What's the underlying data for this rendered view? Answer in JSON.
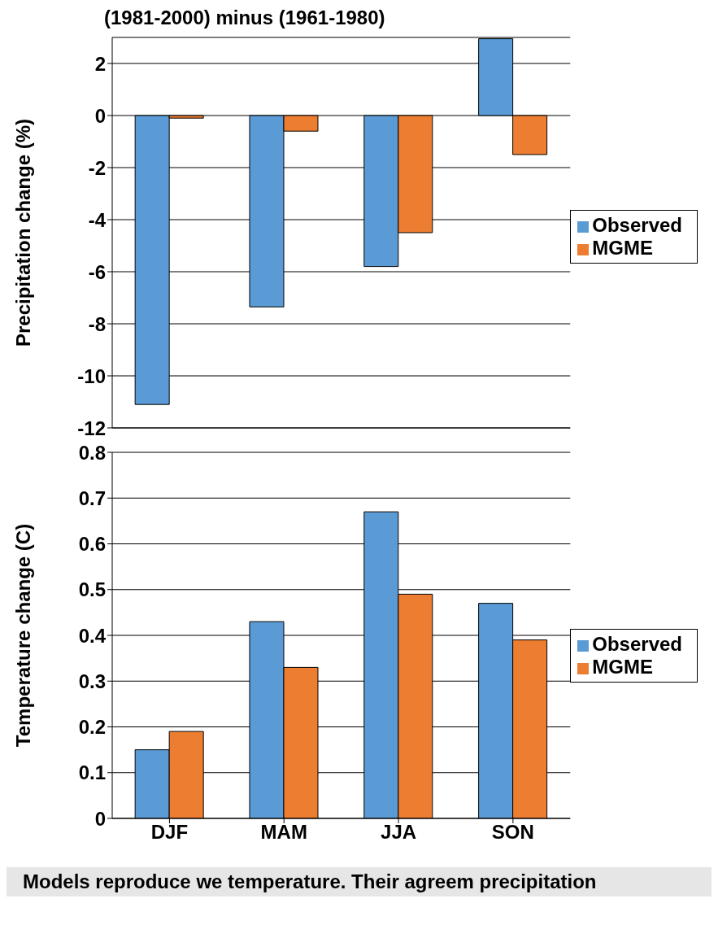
{
  "chart_data": [
    {
      "type": "bar",
      "title": "(1981-2000) minus (1961-1980)",
      "ylabel": "Precipitation change (%)",
      "categories": [
        null,
        null,
        null,
        null
      ],
      "series": [
        {
          "name": "Observed",
          "color": "#5b9bd5",
          "values": [
            -11.1,
            -7.35,
            -5.8,
            2.95
          ]
        },
        {
          "name": "MGME",
          "color": "#ed7d31",
          "values": [
            -0.1,
            -0.6,
            -4.5,
            -1.5
          ]
        }
      ],
      "ylim": [
        -12,
        3
      ],
      "yticks": [
        -12,
        -10,
        -8,
        -6,
        -4,
        -2,
        0,
        2
      ],
      "grid": "y",
      "legend": "right"
    },
    {
      "type": "bar",
      "ylabel": "Temperature change (C)",
      "categories": [
        "DJF",
        "MAM",
        "JJA",
        "SON"
      ],
      "series": [
        {
          "name": "Observed",
          "color": "#5b9bd5",
          "values": [
            0.15,
            0.43,
            0.67,
            0.47
          ]
        },
        {
          "name": "MGME",
          "color": "#ed7d31",
          "values": [
            0.19,
            0.33,
            0.49,
            0.39
          ]
        }
      ],
      "ylim": [
        0,
        0.8
      ],
      "yticks": [
        0,
        0.1,
        0.2,
        0.3,
        0.4,
        0.5,
        0.6,
        0.7,
        0.8
      ],
      "grid": "y",
      "legend": "right",
      "annotations": [
        "Models reproduce we temperature. Their agreem precipitation"
      ]
    }
  ]
}
